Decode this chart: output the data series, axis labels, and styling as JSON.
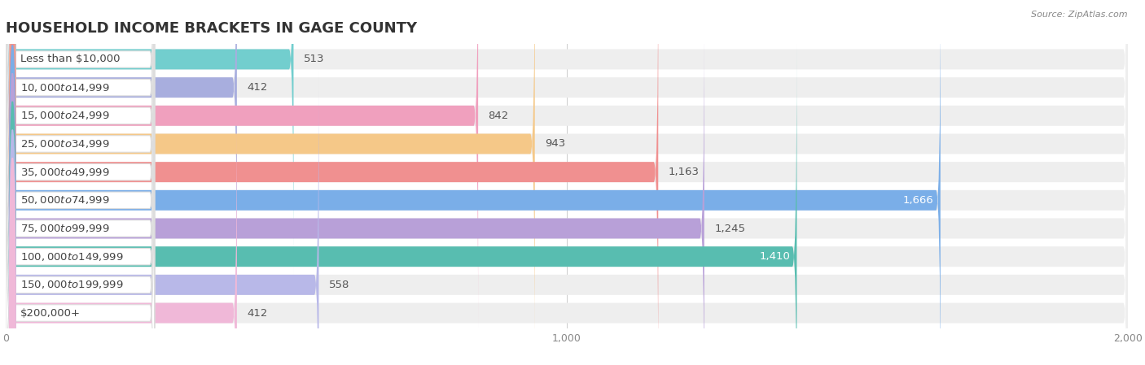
{
  "title": "Household Income Brackets in Gage County",
  "title_display": "HOUSEHOLD INCOME BRACKETS IN GAGE COUNTY",
  "source": "Source: ZipAtlas.com",
  "categories": [
    "Less than $10,000",
    "$10,000 to $14,999",
    "$15,000 to $24,999",
    "$25,000 to $34,999",
    "$35,000 to $49,999",
    "$50,000 to $74,999",
    "$75,000 to $99,999",
    "$100,000 to $149,999",
    "$150,000 to $199,999",
    "$200,000+"
  ],
  "values": [
    513,
    412,
    842,
    943,
    1163,
    1666,
    1245,
    1410,
    558,
    412
  ],
  "bar_colors": [
    "#72cece",
    "#a8aede",
    "#f0a0be",
    "#f5c888",
    "#f09090",
    "#7aaee8",
    "#b8a0d8",
    "#58bdb0",
    "#b8b8e8",
    "#f0b8d8"
  ],
  "label_colors_inside": [
    "#444444",
    "#444444",
    "#444444",
    "#444444",
    "#444444",
    "#ffffff",
    "#ffffff",
    "#ffffff",
    "#444444",
    "#444444"
  ],
  "value_inside_threshold": 1300,
  "xlim": [
    0,
    2000
  ],
  "xticks": [
    0,
    1000,
    2000
  ],
  "background_color": "#ffffff",
  "row_bg_color": "#eeeeee",
  "label_bg_color": "#ffffff",
  "title_fontsize": 13,
  "label_fontsize": 9.5,
  "value_fontsize": 9.5,
  "tick_fontsize": 9
}
